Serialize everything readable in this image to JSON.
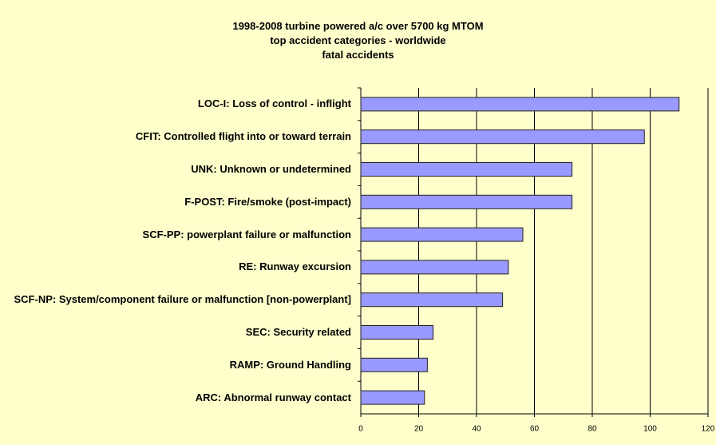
{
  "chart_data": {
    "type": "bar",
    "orientation": "horizontal",
    "title": "1998-2008 turbine powered a/c over 5700 kg MTOM\ntop accident categories - worldwide\nfatal accidents",
    "categories": [
      "LOC-I: Loss of control - inflight",
      "CFIT: Controlled flight into or toward terrain",
      "UNK: Unknown or undetermined",
      "F-POST: Fire/smoke (post-impact)",
      "SCF-PP: powerplant failure or malfunction",
      "RE: Runway excursion",
      "SCF-NP: System/component failure or malfunction [non-powerplant]",
      "SEC: Security related",
      "RAMP: Ground Handling",
      "ARC: Abnormal runway contact"
    ],
    "values": [
      110,
      98,
      73,
      73,
      56,
      51,
      49,
      25,
      23,
      22
    ],
    "color": "#9999ff",
    "xlim": [
      0,
      120
    ],
    "xticks": [
      0,
      20,
      40,
      60,
      80,
      100,
      120
    ],
    "grid": true
  }
}
